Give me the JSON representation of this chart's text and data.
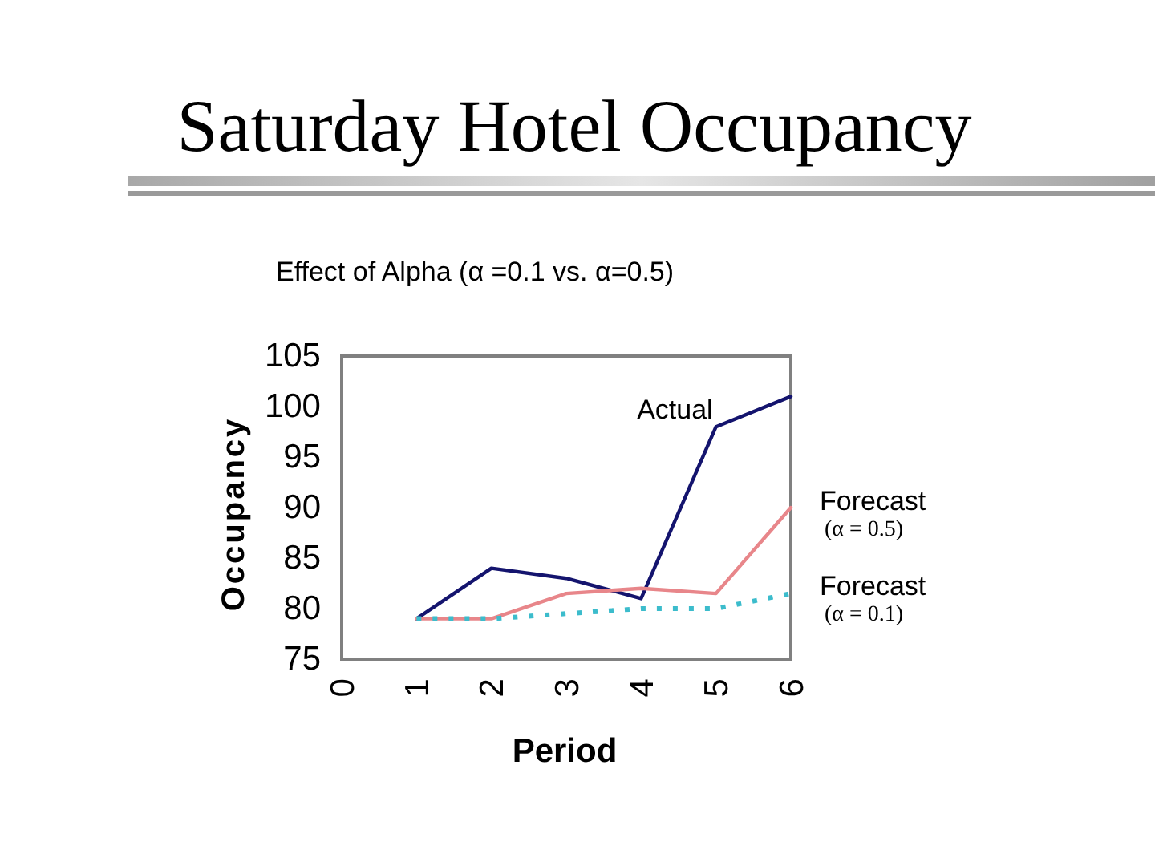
{
  "chart_data": {
    "type": "line",
    "title": "Saturday Hotel Occupancy",
    "subtitle": "Effect of Alpha (α =0.1 vs. α=0.5)",
    "xlabel": "Period",
    "ylabel": "Occupancy",
    "x": [
      1,
      2,
      3,
      4,
      5,
      6
    ],
    "series": [
      {
        "name": "Actual",
        "color": "#14146e",
        "values": [
          79,
          84,
          83,
          81,
          98,
          101
        ]
      },
      {
        "name": "Forecast (α = 0.5)",
        "color": "#e8868a",
        "values": [
          79,
          79,
          81.5,
          82,
          81.5,
          90
        ]
      },
      {
        "name": "Forecast (α = 0.1)",
        "color": "#3cbccc",
        "values": [
          79,
          79,
          79.5,
          80,
          80,
          81.5
        ],
        "line_style": "dotted"
      }
    ],
    "xlim": [
      0,
      6
    ],
    "ylim": [
      75,
      105
    ],
    "xticks": [
      0,
      1,
      2,
      3,
      4,
      5,
      6
    ],
    "yticks": [
      75,
      80,
      85,
      90,
      95,
      100,
      105
    ]
  }
}
